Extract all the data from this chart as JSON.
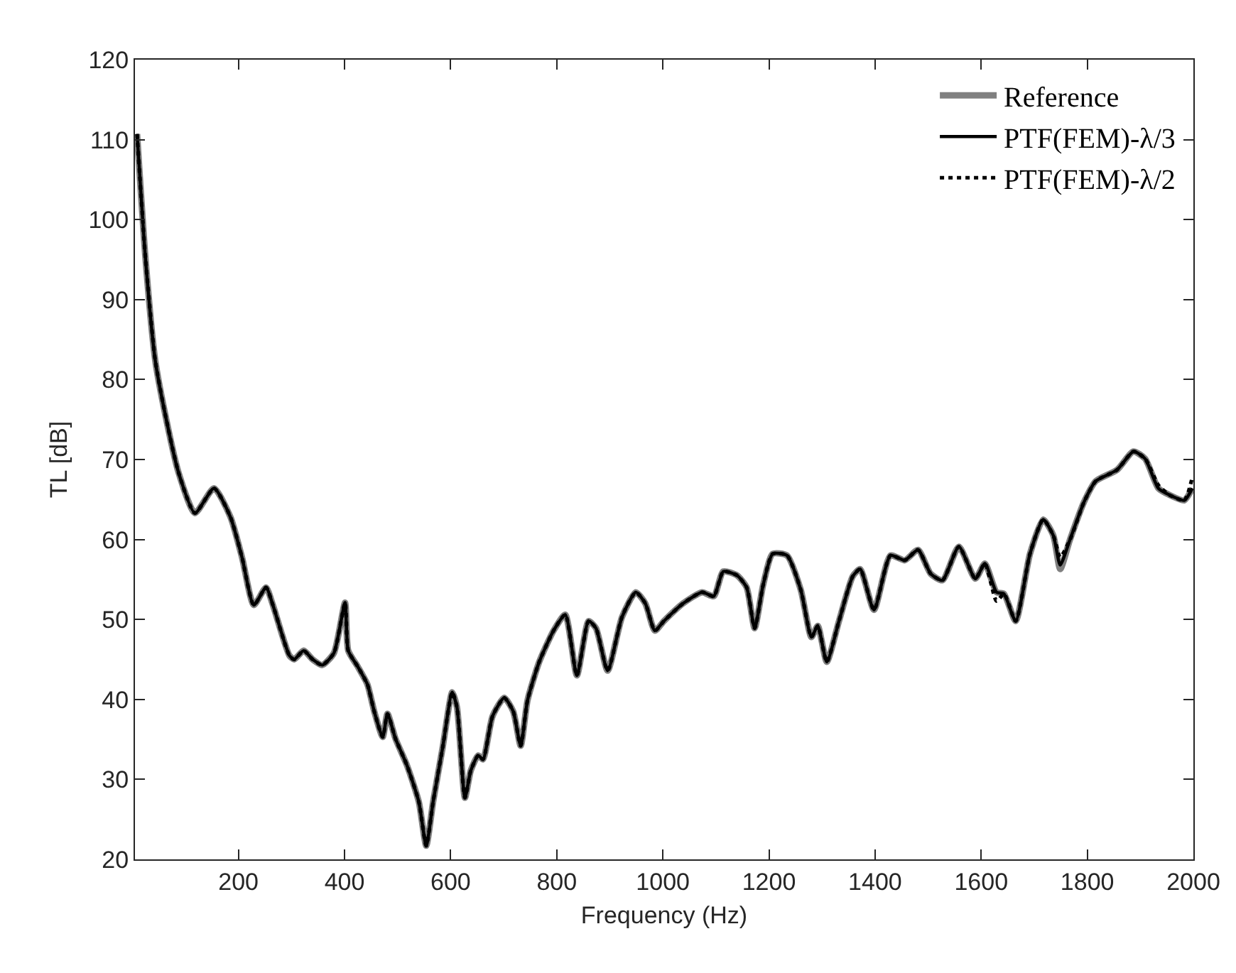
{
  "chart_data": {
    "type": "line",
    "xlabel": "Frequency (Hz)",
    "ylabel": "TL [dB]",
    "x": [
      9,
      25,
      43,
      60,
      87,
      118,
      154,
      185,
      207,
      229,
      252,
      265,
      296,
      305,
      323,
      340,
      358,
      380,
      401,
      407,
      425,
      443,
      456,
      472,
      481,
      496,
      518,
      540,
      554,
      567,
      585,
      603,
      612,
      627,
      638,
      652,
      661,
      679,
      701,
      718,
      732,
      745,
      767,
      794,
      816,
      838,
      860,
      874,
      896,
      923,
      949,
      967,
      985,
      1002,
      1038,
      1074,
      1096,
      1114,
      1140,
      1158,
      1173,
      1189,
      1207,
      1234,
      1260,
      1280,
      1292,
      1309,
      1332,
      1358,
      1372,
      1398,
      1429,
      1456,
      1481,
      1505,
      1527,
      1558,
      1589,
      1607,
      1629,
      1643,
      1665,
      1692,
      1717,
      1736,
      1749,
      1767,
      1794,
      1816,
      1856,
      1887,
      1909,
      1934,
      1954,
      1983,
      1998
    ],
    "series": [
      {
        "name": "Reference",
        "color": "#808080",
        "line_style": "solid",
        "values": [
          110.7,
          95,
          82.5,
          76.3,
          68.4,
          63.3,
          66.4,
          62.8,
          57.7,
          51.8,
          54,
          51.8,
          45.5,
          45,
          46.1,
          45,
          44.3,
          45.8,
          52.1,
          46.1,
          44.1,
          41.9,
          38.5,
          35.3,
          38.2,
          35.1,
          31.7,
          27.2,
          21.7,
          27.2,
          34,
          40.9,
          39,
          27.7,
          31.1,
          33,
          32.5,
          37.9,
          40.2,
          38.5,
          34.2,
          39.9,
          44.7,
          48.6,
          50.6,
          43,
          49.8,
          48.9,
          43.6,
          50.3,
          53.4,
          52,
          48.6,
          49.8,
          52,
          53.4,
          52.9,
          56,
          55.5,
          54,
          48.9,
          54.3,
          58.2,
          58,
          53.7,
          47.8,
          49.2,
          44.7,
          49.8,
          55.4,
          56.3,
          51.2,
          58,
          57.4,
          58.7,
          55.7,
          54.9,
          59.1,
          55.1,
          57,
          53.4,
          53.2,
          49.8,
          58.2,
          62.5,
          60.5,
          56.3,
          59.9,
          64.7,
          67.3,
          68.7,
          71,
          70.1,
          66.4,
          65.6,
          64.9,
          66.4
        ]
      },
      {
        "name": "PTF(FEM)-λ/3",
        "color": "#000000",
        "line_style": "solid",
        "values": [
          110.7,
          95,
          82.5,
          76.3,
          68.4,
          63.3,
          66.4,
          62.8,
          57.7,
          51.8,
          54,
          51.8,
          45.5,
          45,
          46.1,
          45,
          44.3,
          45.8,
          52.1,
          46.1,
          44.1,
          41.9,
          38.5,
          35.3,
          38.2,
          35.1,
          31.7,
          27.2,
          21.7,
          27.2,
          34,
          40.9,
          39,
          27.7,
          31.1,
          33,
          32.5,
          37.9,
          40.2,
          38.5,
          34.2,
          39.9,
          44.7,
          48.6,
          50.6,
          43,
          49.8,
          48.9,
          43.6,
          50.3,
          53.4,
          52,
          48.6,
          49.8,
          52,
          53.4,
          52.9,
          56,
          55.5,
          54,
          48.9,
          54.3,
          58.2,
          58,
          53.7,
          47.8,
          49.2,
          44.7,
          49.8,
          55.4,
          56.3,
          51.2,
          58,
          57.4,
          58.7,
          55.7,
          54.9,
          59.1,
          55.1,
          57,
          53.4,
          53.2,
          49.8,
          58.2,
          62.5,
          60.5,
          56.8,
          59.9,
          64.7,
          67.3,
          68.7,
          71,
          70.1,
          66.4,
          65.6,
          64.9,
          66.4
        ]
      },
      {
        "name": "PTF(FEM)-λ/2",
        "color": "#000000",
        "line_style": "dotted",
        "values": [
          110.7,
          95,
          82.5,
          76.3,
          68.4,
          63.3,
          66.4,
          62.8,
          57.7,
          51.8,
          54,
          51.8,
          45.5,
          45,
          46.1,
          45,
          44.3,
          45.8,
          52.1,
          46.1,
          44.1,
          41.9,
          38.5,
          35.3,
          38.2,
          35.1,
          31.7,
          27.2,
          21.7,
          27.2,
          34,
          40.9,
          39,
          27.7,
          31.1,
          33,
          32.5,
          37.9,
          40.2,
          38.5,
          34.2,
          39.9,
          44.7,
          48.6,
          50.6,
          43,
          49.8,
          48.9,
          43.6,
          50.3,
          53.4,
          52,
          48.6,
          49.8,
          52,
          53.4,
          52.9,
          56,
          55.5,
          54,
          48.9,
          54.3,
          58.2,
          58,
          53.7,
          47.8,
          49.2,
          44.7,
          49.8,
          55.4,
          56.3,
          51.2,
          58,
          57.4,
          58.7,
          55.7,
          54.9,
          59.1,
          55.1,
          57,
          52.3,
          53.2,
          49.8,
          58.2,
          62.5,
          60.5,
          57.8,
          59.9,
          64.7,
          67.3,
          68.7,
          71,
          70.1,
          66.8,
          65.6,
          64.9,
          67.8
        ]
      }
    ],
    "xlim": [
      5,
      2000
    ],
    "xticks": [
      200,
      400,
      600,
      800,
      1000,
      1200,
      1400,
      1600,
      1800,
      2000
    ],
    "ylim": [
      20,
      120
    ],
    "yticks": [
      20,
      30,
      40,
      50,
      60,
      70,
      80,
      90,
      100,
      110,
      120
    ],
    "grid": false,
    "legend": "top right"
  }
}
